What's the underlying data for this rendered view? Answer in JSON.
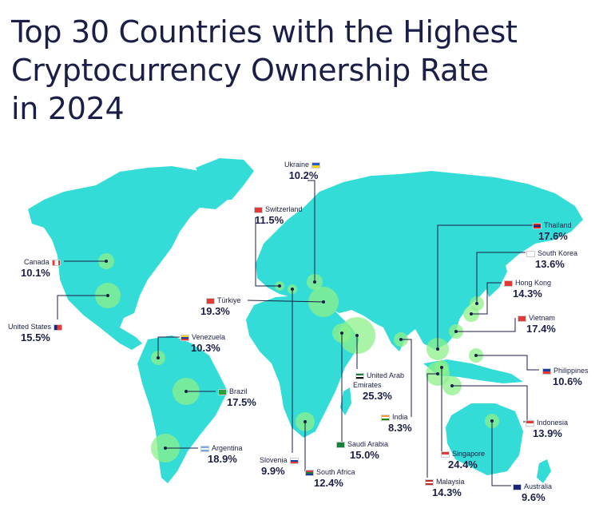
{
  "title_lines": [
    "Top 30 Countries with the Highest",
    "Cryptocurrency Ownership Rate",
    "in 2024"
  ],
  "colors": {
    "land": "#33dcd6",
    "highlight": "#8ef08a",
    "text": "#1b1e47",
    "line": "#1b1e47"
  },
  "countries": [
    {
      "name": "Ukraine",
      "value": "10.2%",
      "flag": [
        "#1e5bd7",
        "#ffd500"
      ]
    },
    {
      "name": "Switzerland",
      "value": "11.5%",
      "flag": [
        "#e53935",
        "#e53935"
      ]
    },
    {
      "name": "Thailand",
      "value": "17.6%",
      "flag": [
        "#c62828",
        "#1a237e"
      ]
    },
    {
      "name": "South Korea",
      "value": "13.6%",
      "flag": [
        "#ffffff",
        "#1a237e"
      ]
    },
    {
      "name": "Canada",
      "value": "10.1%",
      "flag": [
        "#e53935",
        "#ffffff"
      ]
    },
    {
      "name": "Hong Kong",
      "value": "14.3%",
      "flag": [
        "#e53935",
        "#e53935"
      ]
    },
    {
      "name": "Türkiye",
      "value": "19.3%",
      "flag": [
        "#e53935",
        "#e53935"
      ]
    },
    {
      "name": "United States",
      "value": "15.5%",
      "flag": [
        "#1a237e",
        "#e53935"
      ]
    },
    {
      "name": "Vietnam",
      "value": "17.4%",
      "flag": [
        "#e53935",
        "#e53935"
      ]
    },
    {
      "name": "Venezuela",
      "value": "10.3%",
      "flag": [
        "#f9d71c",
        "#e53935"
      ]
    },
    {
      "name": "Philippines",
      "value": "10.6%",
      "flag": [
        "#1a3fa0",
        "#e53935"
      ]
    },
    {
      "name": "United Arab\nEmirates",
      "value": "25.3%",
      "flag": [
        "#1b7f3b",
        "#111111"
      ]
    },
    {
      "name": "Brazil",
      "value": "17.5%",
      "flag": [
        "#2e9e3a",
        "#f9d71c"
      ]
    },
    {
      "name": "India",
      "value": "8.3%",
      "flag": [
        "#ff9933",
        "#138808"
      ]
    },
    {
      "name": "Indonesia",
      "value": "13.9%",
      "flag": [
        "#e53935",
        "#ffffff"
      ]
    },
    {
      "name": "Argentina",
      "value": "18.9%",
      "flag": [
        "#74acdf",
        "#ffffff"
      ]
    },
    {
      "name": "Saudi Arabia",
      "value": "15.0%",
      "flag": [
        "#1b7f3b",
        "#1b7f3b"
      ]
    },
    {
      "name": "Singapore",
      "value": "24.4%",
      "flag": [
        "#e53935",
        "#ffffff"
      ]
    },
    {
      "name": "Slovenia",
      "value": "9.9%",
      "flag": [
        "#1a3fa0",
        "#e53935"
      ]
    },
    {
      "name": "South Africa",
      "value": "12.4%",
      "flag": [
        "#1b7f3b",
        "#1a3fa0"
      ]
    },
    {
      "name": "Malaysia",
      "value": "14.3%",
      "flag": [
        "#c62828",
        "#1a237e"
      ]
    },
    {
      "name": "Australia",
      "value": "9.6%",
      "flag": [
        "#1a237e",
        "#1a237e"
      ]
    }
  ]
}
